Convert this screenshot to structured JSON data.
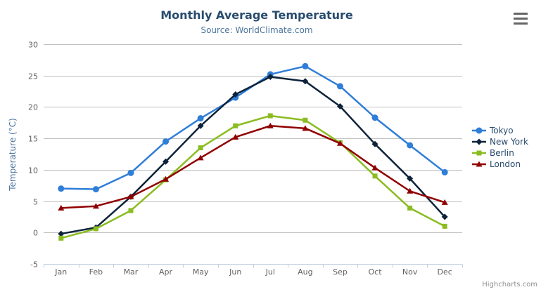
{
  "credits": "Highcharts.com",
  "export_menu": {
    "icon": "hamburger-icon"
  },
  "theme": {
    "title_color": "#274b6d",
    "subtitle_color": "#4d759e",
    "axis_title_color": "#4d759e",
    "axis_label_color": "#606060",
    "grid_color": "#C0C0C0",
    "axis_line_color": "#C0D0E0",
    "legend_text_color": "#274b6d",
    "credits_color": "#909090"
  },
  "chart_data": {
    "type": "line",
    "title": "Monthly Average Temperature",
    "subtitle": "Source: WorldClimate.com",
    "categories": [
      "Jan",
      "Feb",
      "Mar",
      "Apr",
      "May",
      "Jun",
      "Jul",
      "Aug",
      "Sep",
      "Oct",
      "Nov",
      "Dec"
    ],
    "xlabel": "",
    "ylabel": "Temperature (°C)",
    "ylim": [
      -5,
      30
    ],
    "ytick_interval": 5,
    "yticks": [
      -5,
      0,
      5,
      10,
      15,
      20,
      25,
      30
    ],
    "grid": true,
    "legend_position": "right",
    "series": [
      {
        "name": "Tokyo",
        "color": "#2f7ed8",
        "marker": "circle",
        "values": [
          7.0,
          6.9,
          9.5,
          14.5,
          18.2,
          21.5,
          25.2,
          26.5,
          23.3,
          18.3,
          13.9,
          9.6
        ]
      },
      {
        "name": "New York",
        "color": "#0d233a",
        "marker": "diamond",
        "values": [
          -0.2,
          0.8,
          5.7,
          11.3,
          17.0,
          22.0,
          24.8,
          24.1,
          20.1,
          14.1,
          8.6,
          2.5
        ]
      },
      {
        "name": "Berlin",
        "color": "#8bbc21",
        "marker": "square",
        "values": [
          -0.9,
          0.6,
          3.5,
          8.4,
          13.5,
          17.0,
          18.6,
          17.9,
          14.3,
          9.0,
          3.9,
          1.0
        ]
      },
      {
        "name": "London",
        "color": "#910000",
        "marker": "triangle",
        "values": [
          3.9,
          4.2,
          5.7,
          8.5,
          11.9,
          15.2,
          17.0,
          16.6,
          14.2,
          10.3,
          6.6,
          4.8
        ]
      }
    ]
  }
}
